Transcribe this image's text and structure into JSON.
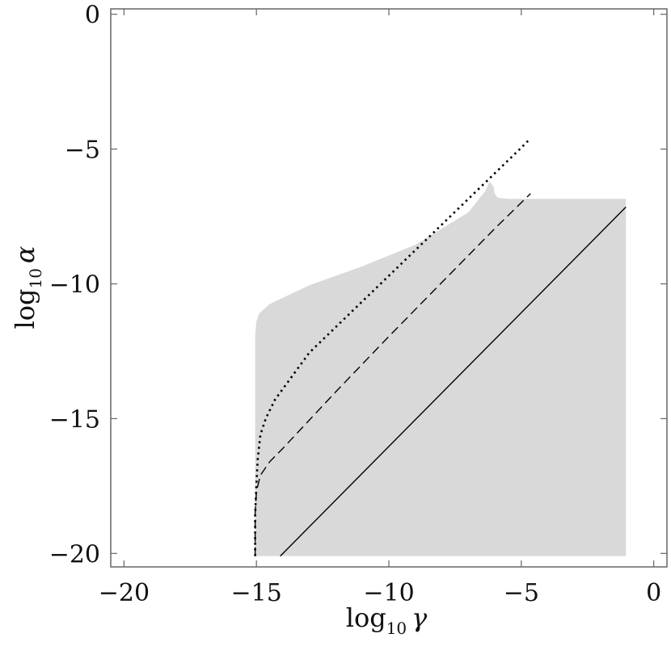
{
  "chart_data": {
    "type": "area",
    "title": "",
    "xlabel": {
      "main": "log",
      "subscript": "10",
      "symbol": "γ"
    },
    "ylabel": {
      "main": "log",
      "subscript": "10",
      "symbol": "α"
    },
    "xlim": [
      -20.5,
      0.5
    ],
    "ylim": [
      -20.5,
      0.2
    ],
    "x_ticks": [
      -20,
      -15,
      -10,
      -5,
      0
    ],
    "y_ticks": [
      -20,
      -15,
      -10,
      -5,
      0
    ],
    "x_tick_labels": [
      "−20",
      "−15",
      "−10",
      "−5",
      "0"
    ],
    "y_tick_labels": [
      "−20",
      "−15",
      "−10",
      "−5",
      "0"
    ],
    "grid": false,
    "legend": "none",
    "colors": {
      "region_fill": "#d9d9d9",
      "line": "#000000",
      "frame": "#666666"
    },
    "region": {
      "name": "",
      "boundary": [
        [
          -15.05,
          -20.1
        ],
        [
          -15.05,
          -11.9
        ],
        [
          -15.0,
          -11.4
        ],
        [
          -14.9,
          -11.1
        ],
        [
          -14.5,
          -10.75
        ],
        [
          -13.0,
          -10.05
        ],
        [
          -11.0,
          -9.35
        ],
        [
          -9.0,
          -8.55
        ],
        [
          -7.0,
          -7.35
        ],
        [
          -6.35,
          -6.55
        ],
        [
          -6.2,
          -6.2
        ],
        [
          -6.05,
          -6.4
        ],
        [
          -6.0,
          -6.65
        ],
        [
          -5.9,
          -6.8
        ],
        [
          -5.5,
          -6.85
        ],
        [
          -1.05,
          -6.85
        ],
        [
          -1.05,
          -20.1
        ]
      ]
    },
    "series": [
      {
        "style": "dotted",
        "points": [
          [
            -15.05,
            -20.1
          ],
          [
            -15.05,
            -18.6
          ],
          [
            -15.0,
            -17.4
          ],
          [
            -14.95,
            -16.5
          ],
          [
            -14.85,
            -15.6
          ],
          [
            -14.65,
            -15.0
          ],
          [
            -14.3,
            -14.3
          ],
          [
            -13.0,
            -12.55
          ],
          [
            -11.0,
            -10.65
          ],
          [
            -9.0,
            -8.75
          ],
          [
            -7.0,
            -6.85
          ],
          [
            -5.0,
            -4.95
          ],
          [
            -4.65,
            -4.6
          ]
        ]
      },
      {
        "style": "dashed",
        "points": [
          [
            -15.05,
            -20.1
          ],
          [
            -15.05,
            -18.5
          ],
          [
            -15.0,
            -17.7
          ],
          [
            -14.85,
            -17.1
          ],
          [
            -14.5,
            -16.6
          ],
          [
            -14.0,
            -16.1
          ],
          [
            -12.0,
            -14.0
          ],
          [
            -10.0,
            -11.95
          ],
          [
            -8.0,
            -9.95
          ],
          [
            -6.0,
            -7.95
          ],
          [
            -4.65,
            -6.65
          ]
        ]
      },
      {
        "style": "solid",
        "points": [
          [
            -14.1,
            -20.1
          ],
          [
            -1.05,
            -7.15
          ]
        ]
      }
    ]
  }
}
